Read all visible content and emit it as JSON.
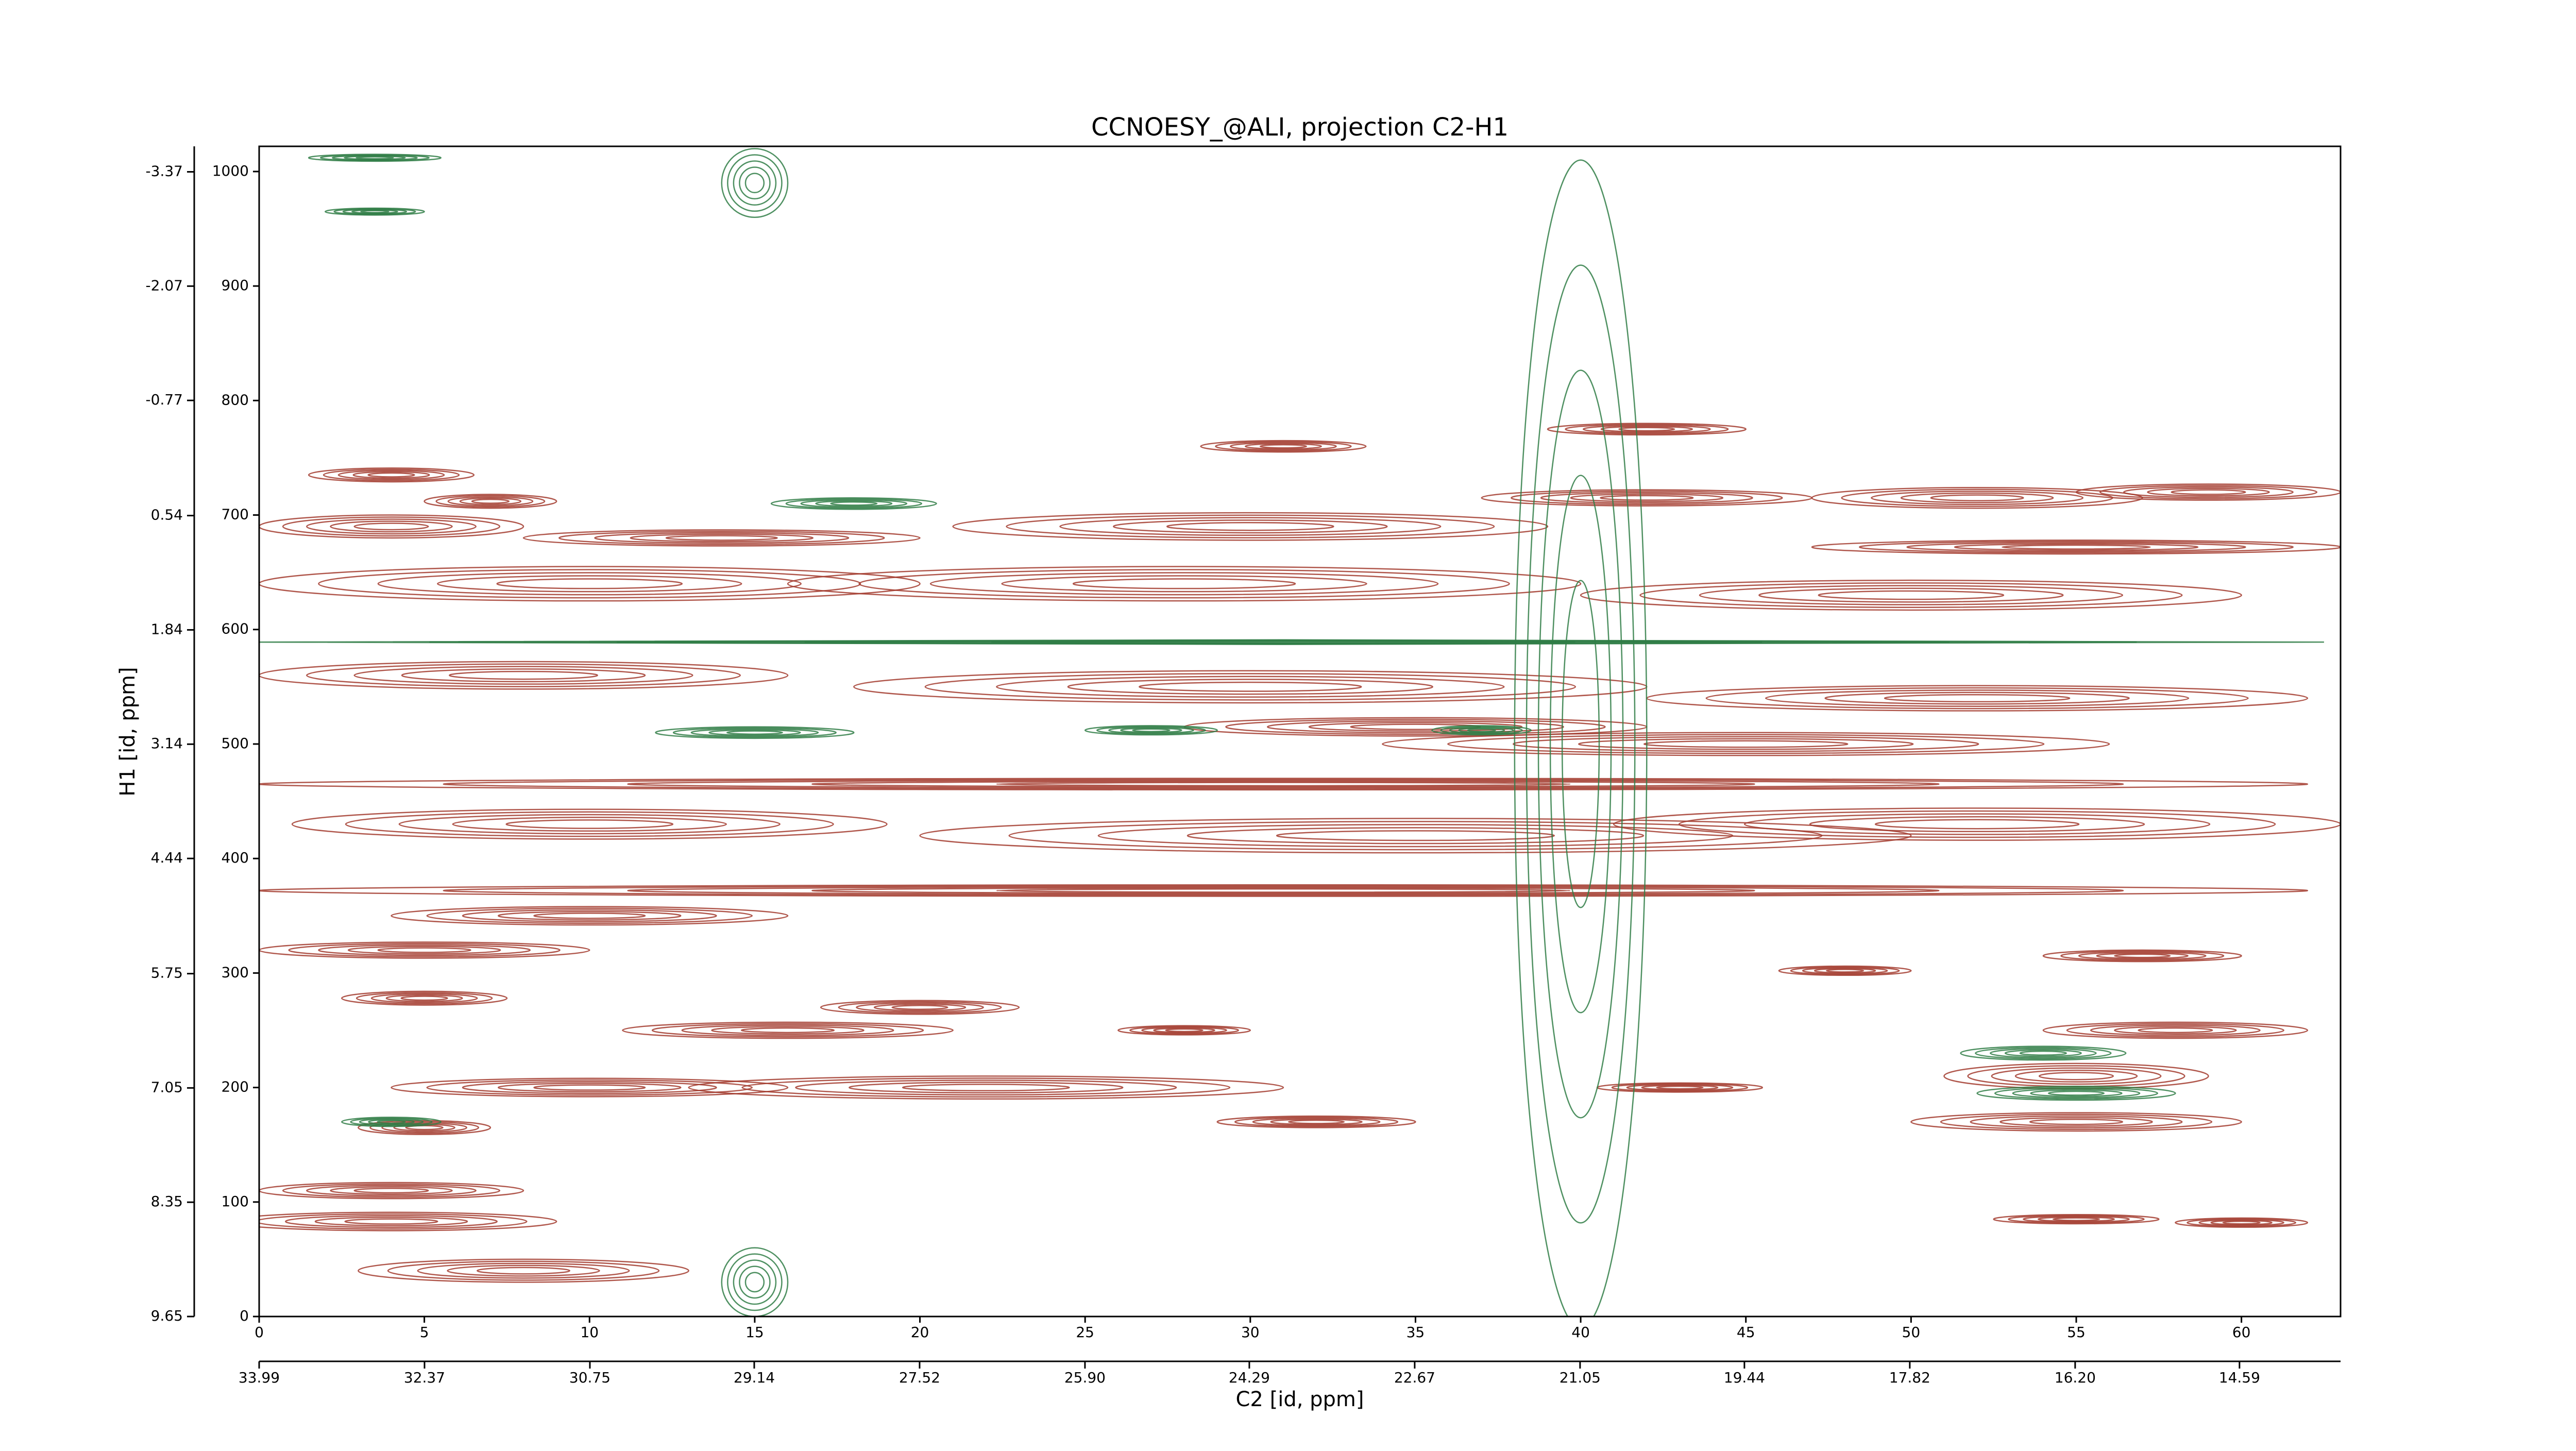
{
  "chart_data": {
    "type": "contour",
    "title": "CCNOESY_@ALI, projection C2-H1",
    "xlabel": "C2 [id, ppm]",
    "ylabel": "H1 [id, ppm]",
    "xlim": [
      0,
      63
    ],
    "xticks": [
      0,
      5,
      10,
      15,
      20,
      25,
      30,
      35,
      40,
      45,
      50,
      55,
      60
    ],
    "ylim": [
      0,
      1022
    ],
    "yticks": [
      0,
      100,
      200,
      300,
      400,
      500,
      600,
      700,
      800,
      900,
      1000
    ],
    "x2lim": [
      33.99,
      13.6
    ],
    "x2ticks": [
      33.99,
      32.37,
      30.75,
      29.14,
      27.52,
      {
        "value": 25.9,
        "label": "25.90"
      },
      24.29,
      22.67,
      21.05,
      19.44,
      17.82,
      {
        "value": 16.2,
        "label": "16.20"
      },
      14.59
    ],
    "y2lim": [
      9.65,
      -3.66
    ],
    "y2ticks": [
      9.65,
      8.35,
      7.05,
      5.75,
      4.44,
      3.14,
      1.84,
      0.54,
      -0.77,
      -2.07,
      -3.37
    ],
    "series": [
      {
        "color": "#a23a2d",
        "x": [
          4,
          7,
          4,
          14,
          30,
          42,
          52,
          59,
          31,
          42,
          55,
          10,
          28,
          50,
          8,
          30,
          52,
          35,
          45,
          31,
          10,
          35,
          52,
          31,
          10,
          5,
          20,
          5,
          16,
          22,
          10,
          5,
          32,
          55,
          55,
          58,
          4,
          4,
          8,
          60,
          55,
          43,
          28,
          48,
          57
        ],
        "y": [
          735,
          712,
          690,
          680,
          690,
          715,
          715,
          720,
          760,
          775,
          672,
          640,
          640,
          630,
          560,
          550,
          540,
          515,
          500,
          465,
          430,
          420,
          430,
          372,
          350,
          320,
          270,
          278,
          250,
          200,
          200,
          165,
          170,
          170,
          210,
          250,
          110,
          83,
          40,
          82,
          85,
          200,
          250,
          302,
          315
        ],
        "xwidth": [
          5,
          4,
          8,
          12,
          18,
          10,
          10,
          8,
          5,
          6,
          16,
          20,
          24,
          20,
          16,
          24,
          20,
          14,
          22,
          62,
          18,
          30,
          22,
          62,
          12,
          10,
          6,
          5,
          10,
          18,
          12,
          4,
          6,
          10,
          8,
          8,
          8,
          10,
          10,
          4,
          5,
          5,
          4,
          4,
          6
        ],
        "ywidth": [
          12,
          12,
          20,
          14,
          24,
          14,
          18,
          14,
          10,
          10,
          12,
          30,
          30,
          26,
          24,
          28,
          22,
          16,
          20,
          10,
          26,
          30,
          28,
          10,
          16,
          14,
          12,
          12,
          14,
          20,
          16,
          12,
          10,
          16,
          22,
          14,
          14,
          16,
          20,
          8,
          8,
          8,
          8,
          8,
          10
        ]
      },
      {
        "color": "#2f7d45",
        "x": [
          31,
          15,
          27,
          37,
          3.5,
          3.5,
          54,
          55,
          4,
          18,
          40,
          15,
          15
        ],
        "y": [
          589,
          510,
          512,
          512,
          1012,
          965,
          230,
          195,
          170,
          710,
          500,
          990,
          30
        ],
        "xwidth": [
          63,
          6,
          4,
          3,
          4,
          3,
          5,
          6,
          3,
          5,
          4,
          2,
          2
        ],
        "ywidth": [
          4,
          10,
          8,
          8,
          6,
          6,
          12,
          12,
          8,
          10,
          1020,
          60,
          60
        ]
      }
    ]
  }
}
